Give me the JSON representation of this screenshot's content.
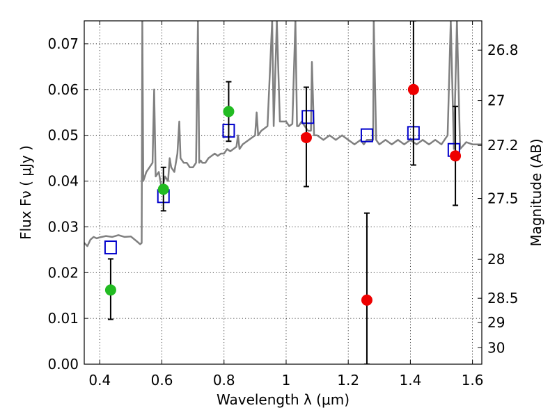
{
  "chart_data": {
    "type": "scatter",
    "xlabel": "Wavelength  λ (μm)",
    "ylabel": "Flux  Fν  ( μJy )",
    "ylabel_right": "Magnitude (AB)",
    "xlim": [
      0.35,
      1.63
    ],
    "ylim": [
      0,
      0.075
    ],
    "grid": true,
    "x_ticks": [
      0.4,
      0.6,
      0.8,
      1.0,
      1.2,
      1.4,
      1.6
    ],
    "x_tick_labels": [
      "0.4",
      "0.6",
      "0.8",
      "1",
      "1.2",
      "1.4",
      "1.6"
    ],
    "y_ticks": [
      0,
      0.01,
      0.02,
      0.03,
      0.04,
      0.05,
      0.06,
      0.07
    ],
    "y_tick_labels": [
      "0.00",
      "0.01",
      "0.02",
      "0.03",
      "0.04",
      "0.05",
      "0.06",
      "0.07"
    ],
    "right_axis_ticks": [
      {
        "label": "26.8",
        "flux": 0.0686
      },
      {
        "label": "27",
        "flux": 0.0576
      },
      {
        "label": "27.2",
        "flux": 0.0478
      },
      {
        "label": "27.5",
        "flux": 0.0362
      },
      {
        "label": "28",
        "flux": 0.0229
      },
      {
        "label": "28.5",
        "flux": 0.0144
      },
      {
        "label": "29",
        "flux": 0.0091
      },
      {
        "label": "30",
        "flux": 0.0036
      }
    ],
    "series": [
      {
        "style": "line",
        "color": "#808080",
        "x": [
          0.35,
          0.36,
          0.37,
          0.38,
          0.39,
          0.4,
          0.42,
          0.44,
          0.46,
          0.48,
          0.5,
          0.52,
          0.53,
          0.535,
          0.537,
          0.54,
          0.55,
          0.56,
          0.57,
          0.575,
          0.58,
          0.59,
          0.6,
          0.61,
          0.62,
          0.625,
          0.63,
          0.64,
          0.65,
          0.656,
          0.66,
          0.67,
          0.68,
          0.69,
          0.7,
          0.71,
          0.716,
          0.72,
          0.725,
          0.73,
          0.74,
          0.75,
          0.76,
          0.77,
          0.78,
          0.79,
          0.8,
          0.81,
          0.82,
          0.84,
          0.845,
          0.85,
          0.86,
          0.88,
          0.9,
          0.905,
          0.91,
          0.92,
          0.94,
          0.955,
          0.96,
          0.97,
          0.98,
          1.0,
          1.01,
          1.02,
          1.03,
          1.035,
          1.04,
          1.05,
          1.06,
          1.07,
          1.08,
          1.083,
          1.09,
          1.1,
          1.12,
          1.14,
          1.16,
          1.18,
          1.2,
          1.22,
          1.24,
          1.25,
          1.26,
          1.28,
          1.282,
          1.29,
          1.3,
          1.32,
          1.34,
          1.36,
          1.38,
          1.4,
          1.42,
          1.44,
          1.46,
          1.48,
          1.5,
          1.52,
          1.53,
          1.54,
          1.55,
          1.56,
          1.58,
          1.6,
          1.63
        ],
        "y": [
          0.0265,
          0.0258,
          0.0272,
          0.0278,
          0.0275,
          0.0277,
          0.028,
          0.0278,
          0.0282,
          0.0278,
          0.0279,
          0.0268,
          0.0262,
          0.0265,
          0.075,
          0.04,
          0.042,
          0.043,
          0.044,
          0.06,
          0.041,
          0.042,
          0.038,
          0.041,
          0.04,
          0.045,
          0.043,
          0.042,
          0.046,
          0.053,
          0.045,
          0.044,
          0.044,
          0.043,
          0.043,
          0.044,
          0.075,
          0.044,
          0.0445,
          0.044,
          0.044,
          0.045,
          0.0455,
          0.046,
          0.0455,
          0.046,
          0.046,
          0.047,
          0.0465,
          0.0475,
          0.05,
          0.047,
          0.048,
          0.049,
          0.05,
          0.055,
          0.05,
          0.051,
          0.052,
          0.075,
          0.052,
          0.075,
          0.053,
          0.053,
          0.052,
          0.0525,
          0.075,
          0.052,
          0.052,
          0.053,
          0.052,
          0.051,
          0.051,
          0.066,
          0.05,
          0.05,
          0.049,
          0.05,
          0.049,
          0.05,
          0.049,
          0.048,
          0.049,
          0.048,
          0.049,
          0.049,
          0.075,
          0.049,
          0.048,
          0.049,
          0.048,
          0.049,
          0.048,
          0.049,
          0.048,
          0.049,
          0.048,
          0.049,
          0.048,
          0.05,
          0.075,
          0.047,
          0.075,
          0.047,
          0.0485,
          0.048,
          0.048
        ]
      },
      {
        "style": "open-square",
        "color": "#0000cc",
        "x": [
          0.435,
          0.605,
          0.815,
          1.07,
          1.26,
          1.41,
          1.54
        ],
        "y": [
          0.0255,
          0.0367,
          0.051,
          0.054,
          0.05,
          0.0505,
          0.0468
        ]
      },
      {
        "style": "filled-circle-errorbar",
        "color": "#22bb22",
        "x": [
          0.435,
          0.605,
          0.815
        ],
        "y": [
          0.0162,
          0.0382,
          0.0552
        ],
        "yerr_low": [
          0.0098,
          0.0335,
          0.0487
        ],
        "yerr_high": [
          0.023,
          0.043,
          0.0617
        ]
      },
      {
        "style": "filled-circle-errorbar",
        "color": "#ee0000",
        "x": [
          1.065,
          1.26,
          1.41,
          1.545
        ],
        "y": [
          0.0495,
          0.014,
          0.06,
          0.0455
        ],
        "yerr_low": [
          0.0388,
          0.0,
          0.0435,
          0.0347
        ],
        "yerr_high": [
          0.0605,
          0.033,
          0.075,
          0.0563
        ]
      }
    ]
  }
}
